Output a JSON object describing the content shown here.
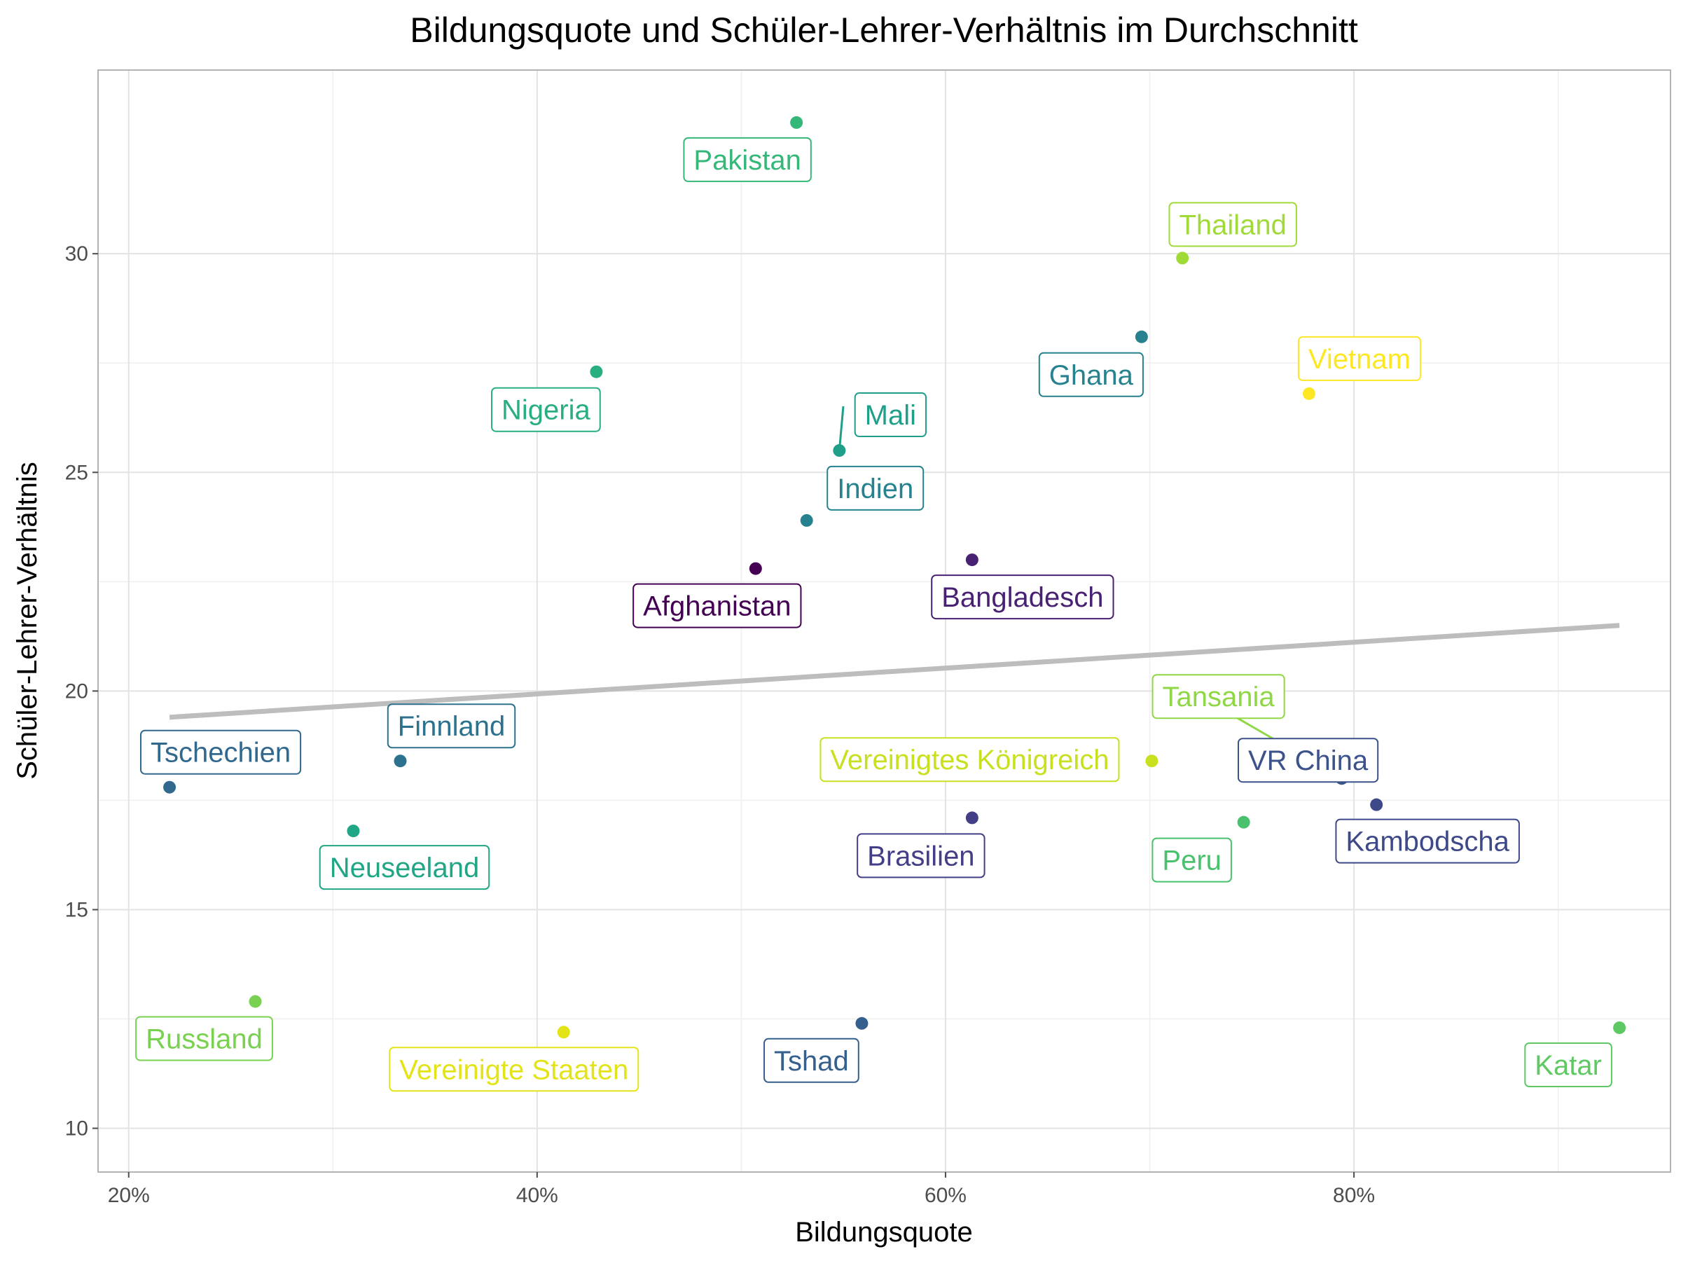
{
  "chart_data": {
    "type": "scatter",
    "title": "Bildungsquote und Schüler-Lehrer-Verhältnis im Durchschnitt",
    "xlabel": "Bildungsquote",
    "ylabel": "Schüler-Lehrer-Verhältnis",
    "xlim": [
      0.185,
      0.955
    ],
    "ylim": [
      9.0,
      34.2
    ],
    "x_ticks": [
      0.2,
      0.4,
      0.6,
      0.8
    ],
    "x_tick_labels": [
      "20%",
      "40%",
      "60%",
      "80%"
    ],
    "y_ticks": [
      10,
      15,
      20,
      25,
      30
    ],
    "y_tick_labels": [
      "10",
      "15",
      "20",
      "25",
      "30"
    ],
    "grid": true,
    "trend_line": {
      "type": "linear",
      "x": [
        0.22,
        0.93
      ],
      "y": [
        19.4,
        21.5
      ],
      "color": "#bdbdbd"
    },
    "points": [
      {
        "label": "Pakistan",
        "x": 0.527,
        "y": 33.0,
        "color": "#35b779"
      },
      {
        "label": "Thailand",
        "x": 0.716,
        "y": 29.9,
        "color": "#a0da39"
      },
      {
        "label": "Ghana",
        "x": 0.696,
        "y": 28.1,
        "color": "#26828e"
      },
      {
        "label": "Vietnam",
        "x": 0.778,
        "y": 26.8,
        "color": "#fde725"
      },
      {
        "label": "Nigeria",
        "x": 0.429,
        "y": 27.3,
        "color": "#29af7f"
      },
      {
        "label": "Mali",
        "x": 0.548,
        "y": 25.5,
        "color": "#1f9e89"
      },
      {
        "label": "Indien",
        "x": 0.532,
        "y": 23.9,
        "color": "#26828e"
      },
      {
        "label": "Afghanistan",
        "x": 0.507,
        "y": 22.8,
        "color": "#440154"
      },
      {
        "label": "Bangladesch",
        "x": 0.613,
        "y": 23.0,
        "color": "#482173"
      },
      {
        "label": "Tansania",
        "x": 0.794,
        "y": 18.0,
        "color": "#8fd744"
      },
      {
        "label": "VR China",
        "x": 0.794,
        "y": 18.0,
        "color": "#3b528b"
      },
      {
        "label": "Vereinigtes Königreich",
        "x": 0.701,
        "y": 18.4,
        "color": "#c8e020"
      },
      {
        "label": "Kambodscha",
        "x": 0.811,
        "y": 17.4,
        "color": "#3e4989"
      },
      {
        "label": "Brasilien",
        "x": 0.613,
        "y": 17.1,
        "color": "#433e85"
      },
      {
        "label": "Peru",
        "x": 0.746,
        "y": 17.0,
        "color": "#4ac16d"
      },
      {
        "label": "Finnland",
        "x": 0.333,
        "y": 18.4,
        "color": "#2c728e"
      },
      {
        "label": "Tschechien",
        "x": 0.22,
        "y": 17.8,
        "color": "#31688e"
      },
      {
        "label": "Neuseeland",
        "x": 0.31,
        "y": 16.8,
        "color": "#21a685"
      },
      {
        "label": "Russland",
        "x": 0.262,
        "y": 12.9,
        "color": "#7ad151"
      },
      {
        "label": "Vereinigte Staaten",
        "x": 0.413,
        "y": 12.2,
        "color": "#e3e418"
      },
      {
        "label": "Tshad",
        "x": 0.559,
        "y": 12.4,
        "color": "#355f8d"
      },
      {
        "label": "Katar",
        "x": 0.93,
        "y": 12.3,
        "color": "#5ec962"
      }
    ]
  }
}
